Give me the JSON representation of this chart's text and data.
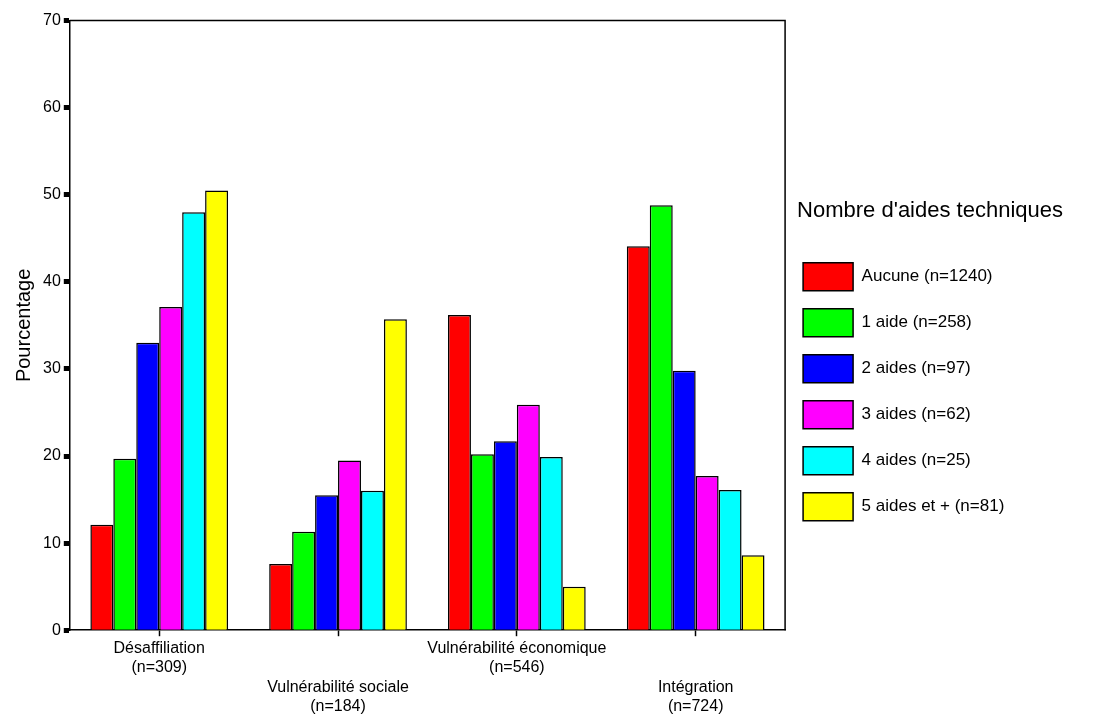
{
  "chart_data": {
    "type": "bar",
    "ylabel": "Pourcentage",
    "legend_title": "Nombre d'aides techniques",
    "legend": "right",
    "grid": false,
    "categories": [
      "Désaffiliation\n(n=309)",
      "Vulnérabilité sociale\n(n=184)",
      "Vulnérabilité économique\n(n=546)",
      "Intégration\n(n=724)"
    ],
    "ylim": [
      0,
      70
    ],
    "yticks": [
      0,
      10,
      20,
      30,
      40,
      50,
      60,
      70
    ],
    "series": [
      {
        "name": "Aucune (n=1240)",
        "color": "#ff0000",
        "values": [
          12.1,
          7.6,
          36.2,
          44.1
        ]
      },
      {
        "name": "1 aide (n=258)",
        "color": "#00ff00",
        "values": [
          19.7,
          11.3,
          20.2,
          48.8
        ]
      },
      {
        "name": "2 aides (n=97)",
        "color": "#0000ff",
        "values": [
          33.0,
          15.5,
          21.7,
          29.8
        ]
      },
      {
        "name": "3 aides (n=62)",
        "color": "#ff00ff",
        "values": [
          37.1,
          19.5,
          25.9,
          17.7
        ]
      },
      {
        "name": "4 aides (n=25)",
        "color": "#00ffff",
        "values": [
          48.0,
          16.0,
          19.9,
          16.1
        ]
      },
      {
        "name": "5 aides et + (n=81)",
        "color": "#ffff00",
        "values": [
          50.5,
          35.7,
          5.0,
          8.6
        ]
      }
    ]
  }
}
